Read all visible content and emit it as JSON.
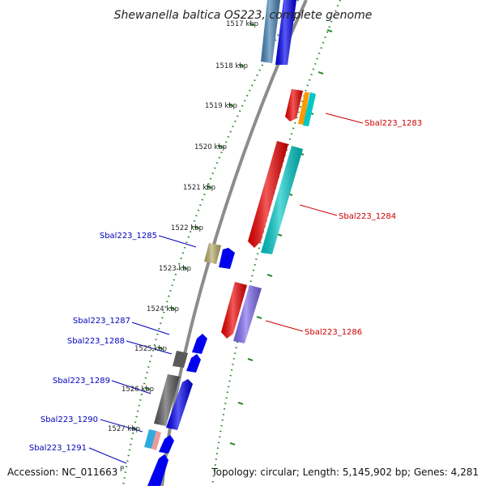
{
  "title": "Shewanella baltica OS223, complete genome",
  "footer": {
    "accession": "Accession: NC_011663",
    "summary": "Topology: circular; Length: 5,145,902 bp; Genes: 4,281"
  },
  "ticks": [
    "1517 kbp",
    "1518 kbp",
    "1519 kbp",
    "1520 kbp",
    "1521 kbp",
    "1522 kbp",
    "1523 kbp",
    "1524 kbp",
    "1525 kbp",
    "1526 kbp",
    "1527 kbp"
  ],
  "origin_marker": "P",
  "genes_forward": [
    {
      "label": "Sbal223_1283"
    },
    {
      "label": "Sbal223_1284"
    },
    {
      "label": "Sbal223_1286"
    }
  ],
  "genes_reverse": [
    {
      "label": "Sbal223_1285"
    },
    {
      "label": "Sbal223_1287"
    },
    {
      "label": "Sbal223_1288"
    },
    {
      "label": "Sbal223_1289"
    },
    {
      "label": "Sbal223_1290"
    },
    {
      "label": "Sbal223_1291"
    }
  ],
  "colors": {
    "backbone": "#8c8c8c",
    "ruler": "#2e8b2e",
    "forward_label": "#cc0000",
    "reverse_label": "#0000bb",
    "red": "#ee0000",
    "cyan": "#00c8c8",
    "orange": "#ff9900",
    "purple": "#7b68ee",
    "blue": "#0000ee",
    "gray": "#5a5a5a",
    "khaki": "#b5ac6a",
    "steel": "#4682b4",
    "skyblue": "#33aadd",
    "pink": "#ee9999"
  }
}
